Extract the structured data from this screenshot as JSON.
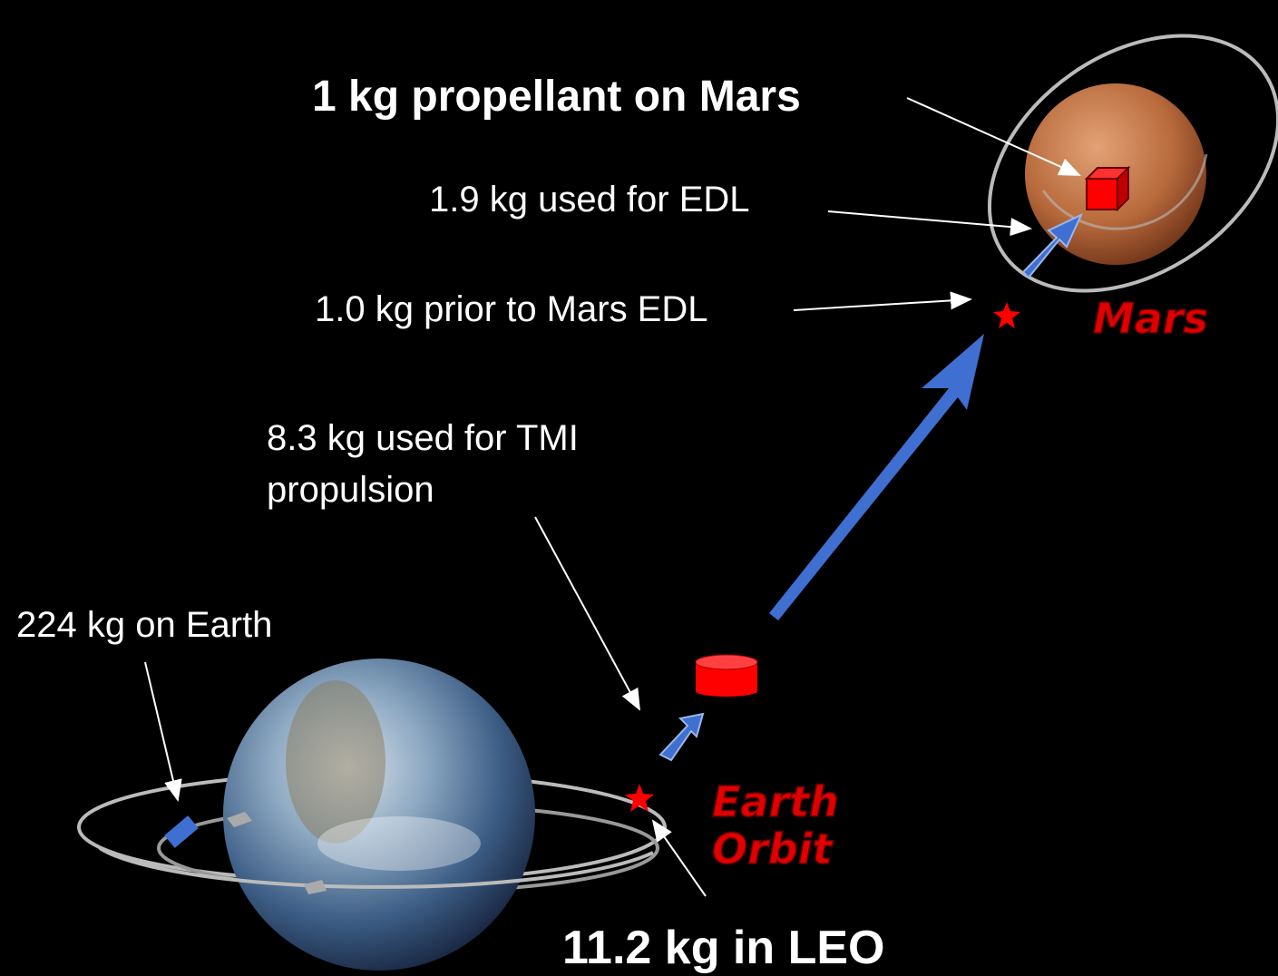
{
  "title": "1 kg propellant on Mars",
  "labels": {
    "edl_used": "1.9 kg used for EDL",
    "prior_edl": "1.0 kg prior to Mars EDL",
    "tmi": [
      "8.3 kg used for TMI",
      "propulsion"
    ],
    "earth": "224 kg on Earth",
    "leo": "11.2 kg in LEO"
  },
  "places": {
    "mars": "Mars",
    "earth_orbit": [
      "Earth",
      "Orbit"
    ]
  }
}
